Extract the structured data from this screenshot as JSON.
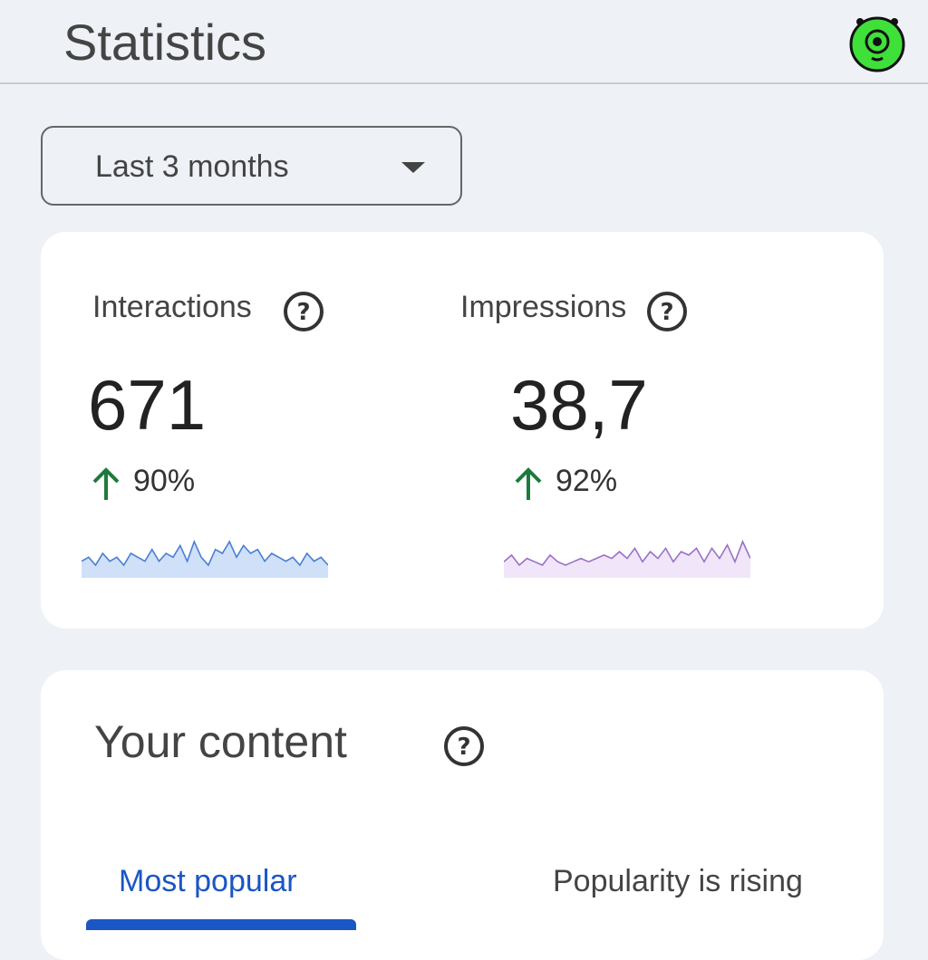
{
  "header": {
    "title": "Statistics"
  },
  "filter": {
    "label": "Last 3 months"
  },
  "metrics": [
    {
      "label": "Interactions",
      "value": "671",
      "change": "90%",
      "sparkline": [
        4,
        5,
        3,
        6,
        4,
        5,
        3,
        6,
        5,
        4,
        7,
        4,
        6,
        5,
        8,
        4,
        9,
        5,
        3,
        7,
        6,
        9,
        5,
        8,
        6,
        7,
        4,
        6,
        5,
        4,
        5,
        3,
        6,
        4,
        5,
        3
      ]
    },
    {
      "label": "Impressions",
      "value": "38,7",
      "change": "92%",
      "sparkline": [
        3,
        5,
        2,
        4,
        3,
        2,
        5,
        3,
        2,
        3,
        4,
        3,
        4,
        5,
        4,
        6,
        4,
        7,
        3,
        6,
        4,
        7,
        3,
        6,
        5,
        7,
        3,
        7,
        4,
        8,
        3,
        9,
        4
      ]
    }
  ],
  "content": {
    "title": "Your content",
    "tabs": [
      "Most popular",
      "Popularity is rising"
    ],
    "active_tab": 0
  }
}
